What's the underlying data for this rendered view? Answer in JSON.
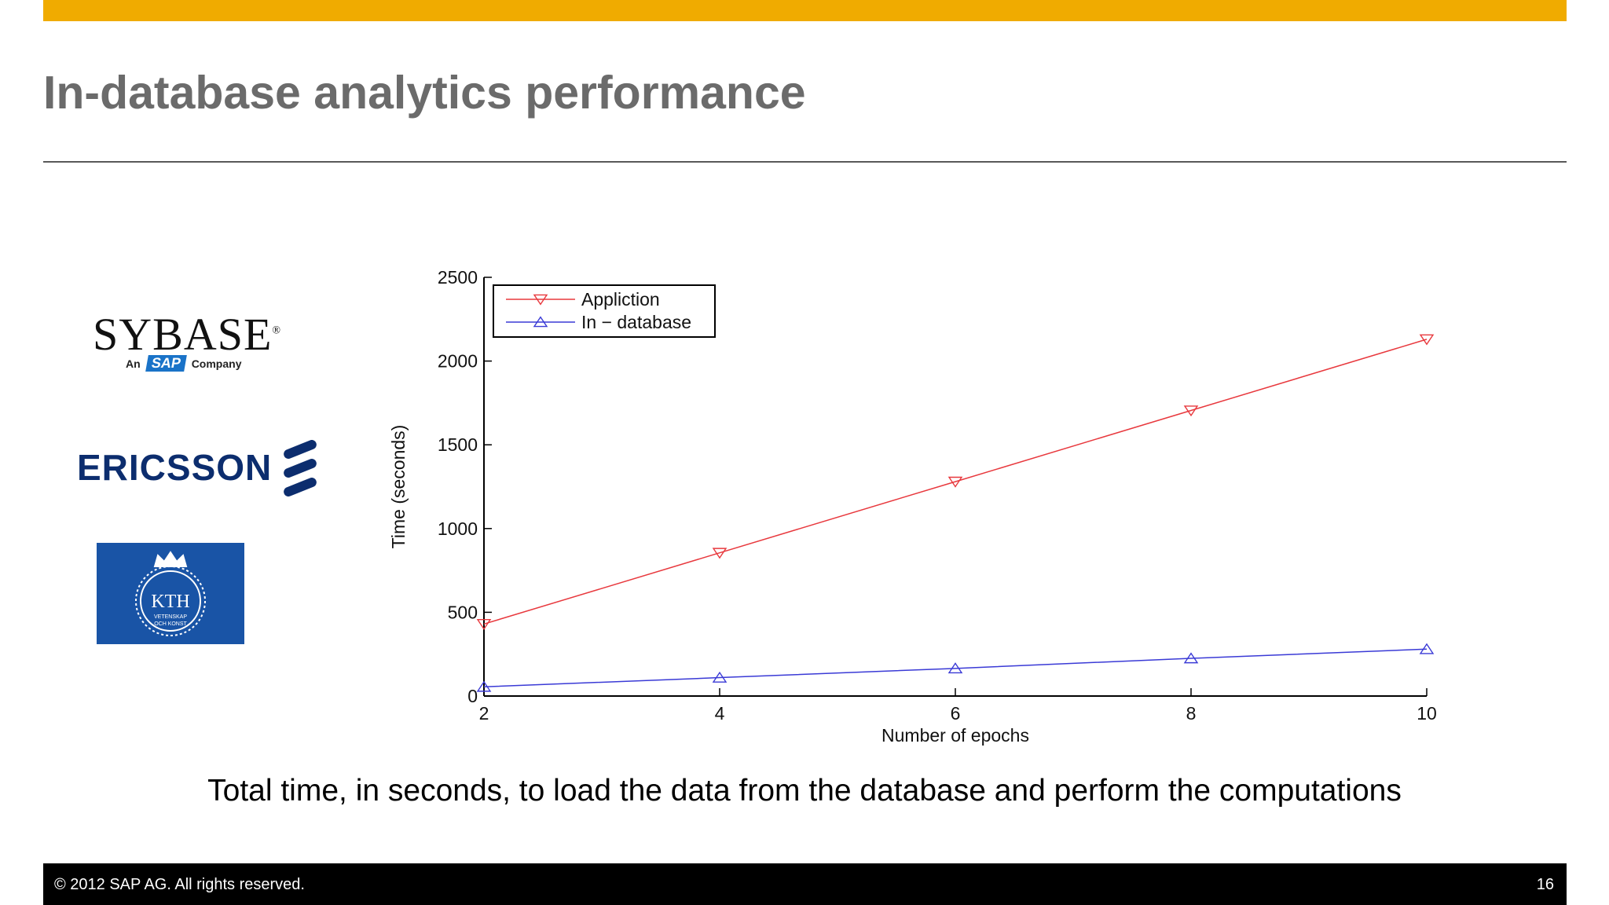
{
  "slide": {
    "title": "In-database analytics performance",
    "caption": "Total time, in seconds, to load the data from the database and perform the computations",
    "footer_text": "© 2012 SAP AG. All rights reserved.",
    "page_number": "16",
    "accent_color": "#f0ab00",
    "footer_color": "#000000"
  },
  "logos": {
    "sybase": {
      "word": "SYBASE",
      "mark": "®",
      "prefix": "An",
      "sap": "SAP",
      "suffix": "Company"
    },
    "ericsson": {
      "word": "ERICSSON"
    },
    "kth": {
      "word": "KTH",
      "motto_line1": "VETENSKAP",
      "motto_line2": "OCH KONST"
    }
  },
  "chart_data": {
    "type": "line",
    "title": "",
    "xlabel": "Number of epochs",
    "ylabel": "Time (seconds)",
    "x": [
      2,
      4,
      6,
      8,
      10
    ],
    "xlim": [
      2,
      10
    ],
    "ylim": [
      0,
      2500
    ],
    "xticks": [
      "2",
      "4",
      "6",
      "8",
      "10"
    ],
    "yticks": [
      "0",
      "500",
      "1000",
      "1500",
      "2000",
      "2500"
    ],
    "grid": false,
    "legend_position": "top-left",
    "series": [
      {
        "name": "Appliction",
        "values": [
          430,
          855,
          1280,
          1705,
          2130
        ],
        "color": "#e8383d",
        "marker": "triangle-down"
      },
      {
        "name": "In − database",
        "values": [
          55,
          110,
          165,
          225,
          280
        ],
        "color": "#3a3ad6",
        "marker": "triangle-up"
      }
    ]
  }
}
